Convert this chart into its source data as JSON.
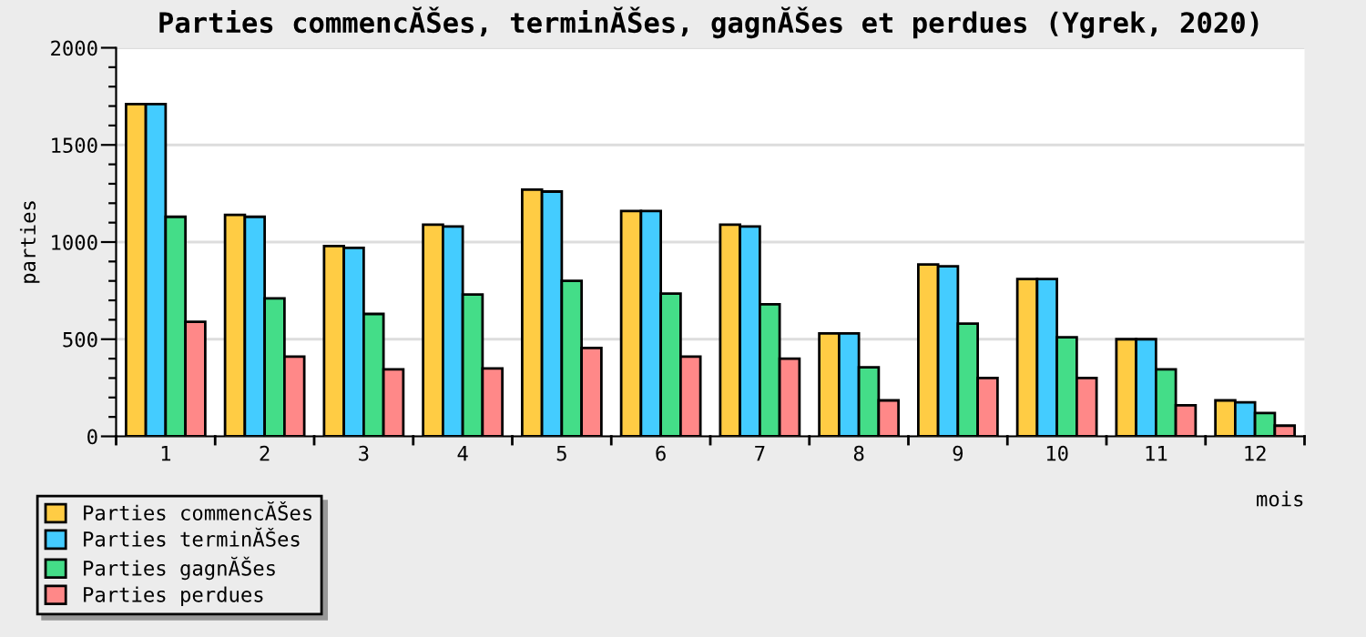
{
  "chart_data": {
    "type": "bar",
    "title": "Parties commencĂŠes, terminĂŠes, gagnĂŠes et perdues (Ygrek, 2020)",
    "xlabel": "mois",
    "ylabel": "parties",
    "categories": [
      "1",
      "2",
      "3",
      "4",
      "5",
      "6",
      "7",
      "8",
      "9",
      "10",
      "11",
      "12"
    ],
    "series": [
      {
        "name": "Parties commencĂŠes",
        "color": "#ffcc44",
        "values": [
          1710,
          1140,
          980,
          1090,
          1270,
          1160,
          1090,
          530,
          885,
          810,
          500,
          185
        ]
      },
      {
        "name": "Parties terminĂŠes",
        "color": "#44ccff",
        "values": [
          1710,
          1130,
          970,
          1080,
          1260,
          1160,
          1080,
          530,
          875,
          810,
          500,
          175
        ]
      },
      {
        "name": "Parties gagnĂŠes",
        "color": "#44dd88",
        "values": [
          1130,
          710,
          630,
          730,
          800,
          735,
          680,
          355,
          580,
          510,
          345,
          120
        ]
      },
      {
        "name": "Parties perdues",
        "color": "#ff8888",
        "values": [
          590,
          410,
          345,
          350,
          455,
          410,
          400,
          185,
          300,
          300,
          160,
          55
        ]
      }
    ],
    "ylim": [
      0,
      2000
    ],
    "yticks": [
      0,
      {
        "value": 100,
        "label": null
      },
      {
        "value": 200,
        "label": null
      },
      {
        "value": 300,
        "label": null
      },
      {
        "value": 400,
        "label": null
      },
      500,
      {
        "value": 600,
        "label": null
      },
      {
        "value": 700,
        "label": null
      },
      {
        "value": 800,
        "label": null
      },
      {
        "value": 900,
        "label": null
      },
      1000,
      {
        "value": 1100,
        "label": null
      },
      {
        "value": 1200,
        "label": null
      },
      {
        "value": 1300,
        "label": null
      },
      {
        "value": 1400,
        "label": null
      },
      1500,
      {
        "value": 1600,
        "label": null
      },
      {
        "value": 1700,
        "label": null
      },
      {
        "value": 1800,
        "label": null
      },
      {
        "value": 1900,
        "label": null
      },
      2000
    ],
    "grid": "y",
    "legend": "bottom left"
  }
}
